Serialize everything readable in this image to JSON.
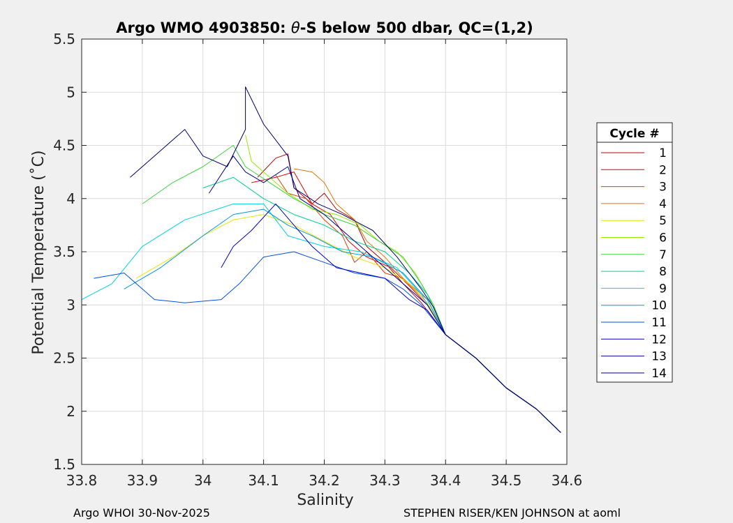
{
  "chart_data": {
    "type": "line",
    "title_prefix": "Argo WMO 4903850: ",
    "title_theta": "θ",
    "title_suffix": "-S below 500 dbar,  QC=(1,2)",
    "xlabel": "Salinity",
    "ylabel": "Potential Temperature (˚C)",
    "xlim": [
      33.8,
      34.6
    ],
    "ylim": [
      1.5,
      5.5
    ],
    "xticks": [
      "33.8",
      "33.9",
      "34",
      "34.1",
      "34.2",
      "34.3",
      "34.4",
      "34.5",
      "34.6"
    ],
    "yticks": [
      "1.5",
      "2",
      "2.5",
      "3",
      "3.5",
      "4",
      "4.5",
      "5",
      "5.5"
    ],
    "grid": true,
    "legend_title": "Cycle #",
    "legend_position": "right",
    "common_tail": [
      [
        34.4,
        2.72
      ],
      [
        34.45,
        2.5
      ],
      [
        34.5,
        2.22
      ],
      [
        34.55,
        2.02
      ],
      [
        34.59,
        1.8
      ]
    ],
    "series": [
      {
        "name": "1",
        "color": "#b30000",
        "points": [
          [
            34.09,
            4.2
          ],
          [
            34.12,
            4.38
          ],
          [
            34.14,
            4.42
          ],
          [
            34.15,
            4.1
          ],
          [
            34.18,
            3.95
          ],
          [
            34.2,
            4.05
          ],
          [
            34.22,
            3.9
          ],
          [
            34.25,
            3.8
          ],
          [
            34.27,
            3.55
          ],
          [
            34.3,
            3.4
          ],
          [
            34.33,
            3.2
          ],
          [
            34.36,
            3.02
          ]
        ]
      },
      {
        "name": "2",
        "color": "#e00000",
        "points": [
          [
            34.08,
            4.15
          ],
          [
            34.12,
            4.2
          ],
          [
            34.15,
            4.25
          ],
          [
            34.18,
            3.95
          ],
          [
            34.21,
            3.85
          ],
          [
            34.24,
            3.6
          ],
          [
            34.27,
            3.45
          ],
          [
            34.31,
            3.35
          ],
          [
            34.34,
            3.18
          ],
          [
            34.37,
            3.0
          ]
        ]
      },
      {
        "name": "3",
        "color": "#e03c00",
        "points": [
          [
            34.12,
            4.22
          ],
          [
            34.14,
            4.05
          ],
          [
            34.17,
            4.0
          ],
          [
            34.2,
            3.8
          ],
          [
            34.23,
            3.65
          ],
          [
            34.25,
            3.4
          ],
          [
            34.27,
            3.5
          ],
          [
            34.3,
            3.3
          ],
          [
            34.33,
            3.25
          ],
          [
            34.37,
            3.02
          ]
        ]
      },
      {
        "name": "4",
        "color": "#e07800",
        "points": [
          [
            34.15,
            4.28
          ],
          [
            34.18,
            4.25
          ],
          [
            34.2,
            4.15
          ],
          [
            34.22,
            3.95
          ],
          [
            34.25,
            3.8
          ],
          [
            34.27,
            3.6
          ],
          [
            34.3,
            3.45
          ],
          [
            34.33,
            3.25
          ],
          [
            34.37,
            3.05
          ]
        ]
      },
      {
        "name": "5",
        "color": "#e6e600",
        "points": [
          [
            33.89,
            3.25
          ],
          [
            33.95,
            3.45
          ],
          [
            34.0,
            3.65
          ],
          [
            34.05,
            3.8
          ],
          [
            34.1,
            3.85
          ],
          [
            34.15,
            3.75
          ],
          [
            34.2,
            3.6
          ],
          [
            34.25,
            3.45
          ],
          [
            34.3,
            3.35
          ],
          [
            34.34,
            3.2
          ],
          [
            34.37,
            3.02
          ]
        ]
      },
      {
        "name": "6",
        "color": "#9ae600",
        "points": [
          [
            34.07,
            4.6
          ],
          [
            34.08,
            4.35
          ],
          [
            34.11,
            4.2
          ],
          [
            34.14,
            4.05
          ],
          [
            34.18,
            3.9
          ],
          [
            34.22,
            3.85
          ],
          [
            34.26,
            3.75
          ],
          [
            34.29,
            3.6
          ],
          [
            34.32,
            3.5
          ],
          [
            34.35,
            3.3
          ],
          [
            34.38,
            3.0
          ]
        ]
      },
      {
        "name": "7",
        "color": "#3cd23c",
        "points": [
          [
            33.9,
            3.95
          ],
          [
            33.95,
            4.15
          ],
          [
            34.0,
            4.3
          ],
          [
            34.05,
            4.5
          ],
          [
            34.07,
            4.3
          ],
          [
            34.11,
            4.15
          ],
          [
            34.15,
            4.0
          ],
          [
            34.2,
            3.85
          ],
          [
            34.25,
            3.75
          ],
          [
            34.29,
            3.6
          ],
          [
            34.33,
            3.45
          ],
          [
            34.36,
            3.2
          ],
          [
            34.38,
            3.0
          ]
        ]
      },
      {
        "name": "8",
        "color": "#00d28c",
        "points": [
          [
            34.0,
            4.1
          ],
          [
            34.05,
            4.2
          ],
          [
            34.1,
            4.0
          ],
          [
            34.15,
            3.85
          ],
          [
            34.2,
            3.75
          ],
          [
            34.25,
            3.6
          ],
          [
            34.3,
            3.5
          ],
          [
            34.34,
            3.3
          ],
          [
            34.37,
            3.1
          ]
        ]
      },
      {
        "name": "9",
        "color": "#00d2e6",
        "points": [
          [
            33.8,
            3.05
          ],
          [
            33.85,
            3.2
          ],
          [
            33.9,
            3.55
          ],
          [
            33.97,
            3.8
          ],
          [
            34.05,
            3.95
          ],
          [
            34.1,
            3.95
          ],
          [
            34.14,
            3.65
          ],
          [
            34.2,
            3.55
          ],
          [
            34.26,
            3.5
          ],
          [
            34.32,
            3.35
          ],
          [
            34.36,
            3.1
          ]
        ]
      },
      {
        "name": "10",
        "color": "#0096e6",
        "points": [
          [
            33.87,
            3.15
          ],
          [
            33.93,
            3.35
          ],
          [
            34.0,
            3.65
          ],
          [
            34.05,
            3.85
          ],
          [
            34.1,
            3.9
          ],
          [
            34.14,
            3.75
          ],
          [
            34.18,
            3.65
          ],
          [
            34.23,
            3.5
          ],
          [
            34.28,
            3.45
          ],
          [
            34.33,
            3.3
          ],
          [
            34.37,
            3.05
          ]
        ]
      },
      {
        "name": "11",
        "color": "#0050e6",
        "points": [
          [
            33.82,
            3.25
          ],
          [
            33.87,
            3.3
          ],
          [
            33.92,
            3.05
          ],
          [
            33.97,
            3.02
          ],
          [
            34.03,
            3.05
          ],
          [
            34.06,
            3.2
          ],
          [
            34.1,
            3.45
          ],
          [
            34.15,
            3.5
          ],
          [
            34.2,
            3.4
          ],
          [
            34.25,
            3.3
          ],
          [
            34.3,
            3.25
          ],
          [
            34.33,
            3.15
          ],
          [
            34.36,
            3.0
          ]
        ]
      },
      {
        "name": "12",
        "color": "#0000c8",
        "points": [
          [
            34.03,
            3.35
          ],
          [
            34.05,
            3.55
          ],
          [
            34.08,
            3.7
          ],
          [
            34.12,
            3.95
          ],
          [
            34.15,
            3.75
          ],
          [
            34.18,
            3.55
          ],
          [
            34.22,
            3.35
          ],
          [
            34.26,
            3.3
          ],
          [
            34.3,
            3.25
          ],
          [
            34.34,
            3.05
          ],
          [
            34.37,
            2.95
          ]
        ]
      },
      {
        "name": "13",
        "color": "#000096",
        "points": [
          [
            34.01,
            4.05
          ],
          [
            34.05,
            4.4
          ],
          [
            34.07,
            4.25
          ],
          [
            34.1,
            4.15
          ],
          [
            34.14,
            4.3
          ],
          [
            34.16,
            4.0
          ],
          [
            34.2,
            3.85
          ],
          [
            34.25,
            3.6
          ],
          [
            34.29,
            3.4
          ],
          [
            34.33,
            3.2
          ],
          [
            34.37,
            3.0
          ]
        ]
      },
      {
        "name": "14",
        "color": "#00006e",
        "points": [
          [
            33.88,
            4.2
          ],
          [
            33.93,
            4.45
          ],
          [
            33.97,
            4.65
          ],
          [
            34.0,
            4.4
          ],
          [
            34.04,
            4.3
          ],
          [
            34.07,
            4.65
          ],
          [
            34.07,
            5.05
          ],
          [
            34.1,
            4.7
          ],
          [
            34.14,
            4.4
          ],
          [
            34.15,
            4.1
          ],
          [
            34.19,
            3.95
          ],
          [
            34.23,
            3.85
          ],
          [
            34.28,
            3.7
          ],
          [
            34.32,
            3.45
          ],
          [
            34.36,
            3.15
          ],
          [
            34.38,
            2.98
          ]
        ]
      }
    ]
  },
  "footer": {
    "left": "Argo WHOI 30-Nov-2025",
    "right": "STEPHEN RISER/KEN JOHNSON at aoml"
  }
}
